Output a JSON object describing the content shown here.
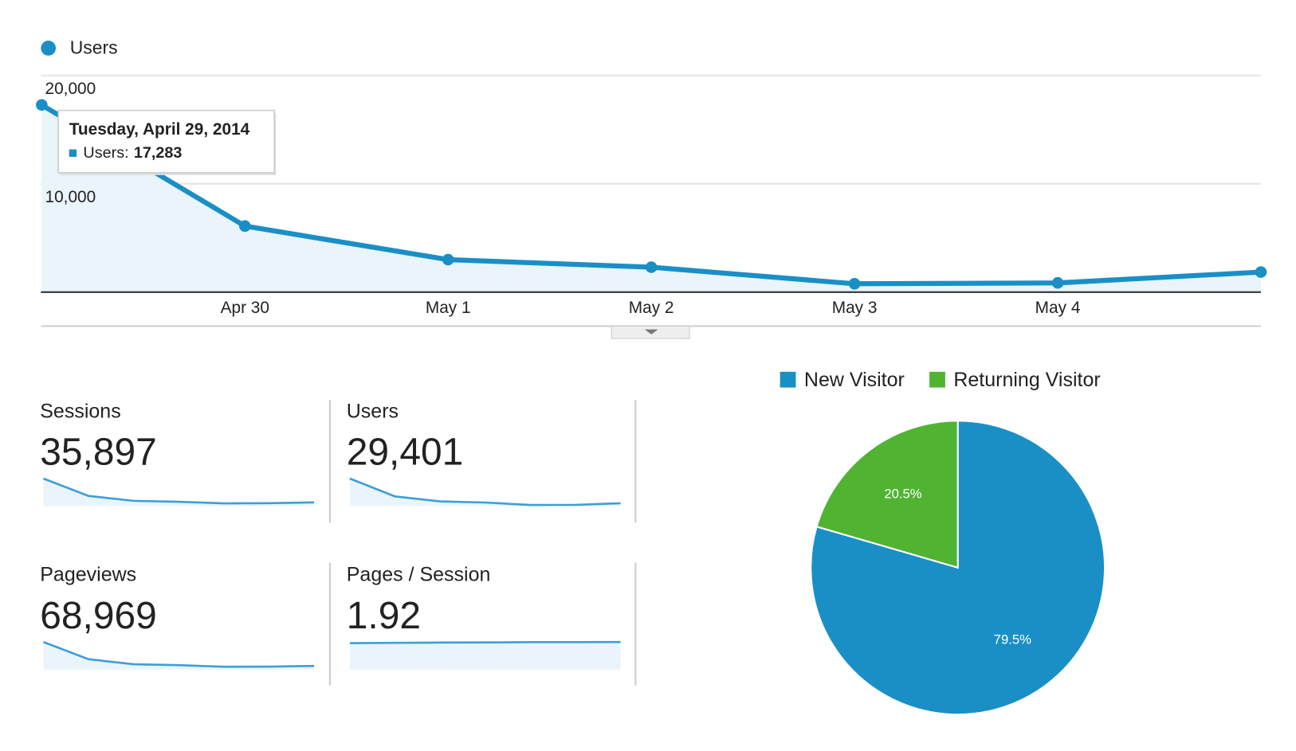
{
  "chart_data": [
    {
      "type": "line",
      "categories": [
        null,
        "Apr 30",
        "May 1",
        "May 2",
        "May 3",
        "May 4",
        null
      ],
      "series": [
        {
          "name": "Users",
          "color": "#1a8fc6",
          "values": [
            17283,
            6100,
            3000,
            2300,
            770,
            850,
            1850
          ],
          "value_labels": [
            "17,283",
            null,
            null,
            null,
            null,
            null,
            null
          ]
        }
      ],
      "ylim": [
        0,
        20000
      ],
      "yticks": [
        {
          "value": 10000,
          "label": "10,000"
        },
        {
          "value": 20000,
          "label": "20,000"
        }
      ],
      "grid": true,
      "tooltip": {
        "title": "Tuesday, April 29, 2014",
        "label": "Users:"
      }
    },
    {
      "type": "pie",
      "categories": [
        "New Visitor",
        "Returning Visitor"
      ],
      "values": [
        79.5,
        20.5
      ],
      "value_labels": [
        "79.5%",
        "20.5%"
      ],
      "colors": [
        "#1a8fc6",
        "#50b432"
      ]
    }
  ],
  "metrics": [
    {
      "label": "Sessions",
      "value": "35,897",
      "sparkline": [
        17500,
        6500,
        3400,
        2800,
        1800,
        1900,
        2400
      ]
    },
    {
      "label": "Users",
      "value": "29,401",
      "sparkline": [
        17283,
        6100,
        3000,
        2300,
        770,
        850,
        1850
      ]
    },
    {
      "label": "Pageviews",
      "value": "68,969",
      "sparkline": [
        33000,
        12500,
        6500,
        5400,
        3500,
        3600,
        4500
      ]
    },
    {
      "label": "Pages / Session",
      "value": "1.92",
      "sparkline": [
        1.88,
        1.9,
        1.92,
        1.93,
        1.95,
        1.95,
        1.96
      ]
    }
  ]
}
